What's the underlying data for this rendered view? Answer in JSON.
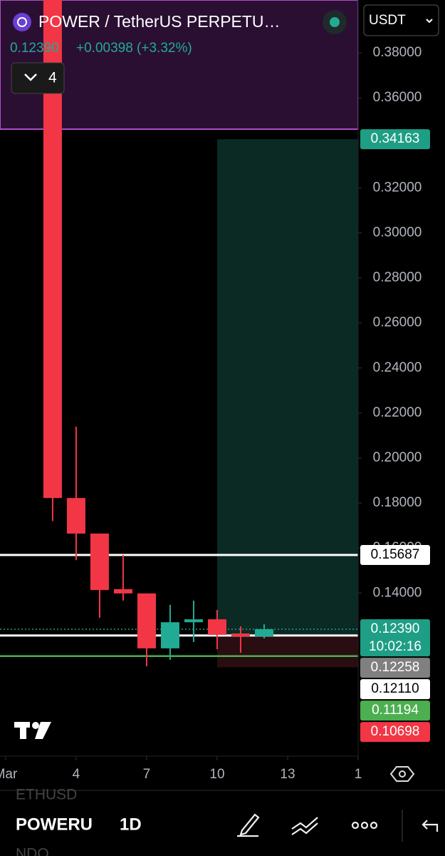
{
  "header": {
    "symbol": "POWER / TetherUS PERPETU…",
    "price": "0.12390",
    "change": "+0.00398 (+3.32%)",
    "indicators": "4",
    "currency": "USDT"
  },
  "chart_data": {
    "type": "candlestick",
    "x": [
      3,
      4,
      5,
      6,
      7,
      8,
      9,
      10,
      11,
      12
    ],
    "open": [
      0.42,
      0.1822,
      0.1664,
      0.1417,
      0.1398,
      0.1154,
      0.127,
      0.1283,
      0.122,
      0.1207
    ],
    "close": [
      0.1822,
      0.1664,
      0.1413,
      0.1398,
      0.1154,
      0.127,
      0.1283,
      0.1214,
      0.1207,
      0.1239
    ],
    "high": [
      0.42,
      0.2139,
      0.1664,
      0.1569,
      0.1398,
      0.1347,
      0.1366,
      0.1325,
      0.1252,
      0.1261
    ],
    "low": [
      0.172,
      0.1546,
      0.129,
      0.1366,
      0.1074,
      0.1103,
      0.1182,
      0.115,
      0.1134,
      0.1198
    ],
    "up_color": "#22ab94",
    "down_color": "#f23645",
    "xlim": [
      0.76,
      16
    ],
    "xticks": [
      {
        "value": 1,
        "label": "Mar"
      },
      4,
      7,
      10,
      13,
      {
        "value": 16,
        "label": "1"
      }
    ],
    "ylim": [
      0.0675,
      0.4035
    ],
    "yticks": [
      {
        "value": 0.38,
        "label": "0.38000"
      },
      {
        "value": 0.36,
        "label": "0.36000"
      },
      {
        "value": 0.32,
        "label": "0.32000"
      },
      {
        "value": 0.3,
        "label": "0.30000"
      },
      {
        "value": 0.28,
        "label": "0.28000"
      },
      {
        "value": 0.26,
        "label": "0.26000"
      },
      {
        "value": 0.24,
        "label": "0.24000"
      },
      {
        "value": 0.22,
        "label": "0.22000"
      },
      {
        "value": 0.2,
        "label": "0.20000"
      },
      {
        "value": 0.18,
        "label": "0.18000"
      },
      {
        "value": 0.16,
        "label": "0.16000"
      },
      {
        "value": 0.14,
        "label": "0.14000"
      }
    ],
    "zones": [
      {
        "x_start": 0.76,
        "top": 0.4035,
        "bottom": 0.3461,
        "color": "#2a0f33",
        "border": "#b04fc9"
      },
      {
        "x_start": 10,
        "top": 0.34163,
        "bottom": 0.1211,
        "color": "#0b2a24",
        "border": "none"
      },
      {
        "x_start": 10,
        "top": 0.1211,
        "bottom": 0.10698,
        "color": "#2a0d10",
        "border": "none"
      }
    ],
    "levels": [
      {
        "value": 0.34163,
        "label": "0.34163",
        "color": "#1e9e85",
        "text_color": "#ffffff",
        "line": "none"
      },
      {
        "value": 0.15687,
        "label": "0.15687",
        "color": "#ffffff",
        "text_color": "#000000",
        "line": "solid"
      },
      {
        "value": 0.1239,
        "label": "0.12390",
        "time": "10:02:16",
        "color": "#1e9e85",
        "text_color": "#ffffff",
        "line": "dotted"
      },
      {
        "value": 0.12258,
        "label": "0.12258",
        "color": "#808080",
        "text_color": "#ffffff",
        "line": "none"
      },
      {
        "value": 0.1211,
        "label": "0.12110",
        "color": "#ffffff",
        "text_color": "#000000",
        "line": "solid"
      },
      {
        "value": 0.11194,
        "label": "0.11194",
        "color": "#4caf50",
        "text_color": "#ffffff",
        "line": "solid"
      },
      {
        "value": 0.10698,
        "label": "0.10698",
        "color": "#f23645",
        "text_color": "#ffffff",
        "line": "none"
      }
    ]
  },
  "toolbar": {
    "prev_symbol": "ETHUSD",
    "symbol": "POWERU",
    "interval": "1D",
    "next_symbol": "NDO"
  }
}
